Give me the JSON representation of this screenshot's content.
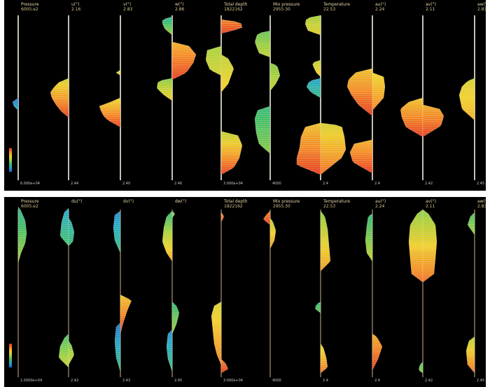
{
  "colormap": [
    "#1f5fd6",
    "#1ea9c9",
    "#3cc06b",
    "#a8d23a",
    "#f0cf2a",
    "#f48a24",
    "#e8331f"
  ],
  "top_panel": {
    "columns": [
      {
        "label": "Pressure",
        "value": "6005.e2",
        "foot": "6.000e+04"
      },
      {
        "label": "u(°)",
        "value": "2.16",
        "foot": "2.44"
      },
      {
        "label": "v(°)",
        "value": "2.83",
        "foot": "2.40"
      },
      {
        "label": "w(°)",
        "value": "2.86",
        "foot": "2.46"
      },
      {
        "label": "Total depth",
        "value": "1822162",
        "foot": "3.000e+04"
      },
      {
        "label": "Mix pressure",
        "value": "2955.30",
        "foot": "4000"
      },
      {
        "label": "Temperature",
        "value": "22.53",
        "foot": "2.4"
      },
      {
        "label": "au(°)",
        "value": "2.24",
        "foot": "2.4"
      },
      {
        "label": "av(°)",
        "value": "2.11",
        "foot": "2.42"
      },
      {
        "label": "aw(°)",
        "value": "2.83",
        "foot": "2.45"
      }
    ]
  },
  "bottom_panel": {
    "columns": [
      {
        "label": "Pressure",
        "value": "6005.e2",
        "foot": "1.0000e+04"
      },
      {
        "label": "du(°)",
        "value": "",
        "foot": "2.42"
      },
      {
        "label": "dv(°)",
        "value": "",
        "foot": "2.43"
      },
      {
        "label": "dw(°)",
        "value": "",
        "foot": "2.45"
      },
      {
        "label": "Total depth",
        "value": "1822162",
        "foot": "3.000e+04"
      },
      {
        "label": "Mix pressure",
        "value": "2955.30",
        "foot": "4000"
      },
      {
        "label": "Temperature",
        "value": "22.53",
        "foot": "2.4"
      },
      {
        "label": "au(°)",
        "value": "2.24",
        "foot": "2.4"
      },
      {
        "label": "av(°)",
        "value": "2.11",
        "foot": "2.42"
      },
      {
        "label": "aw(°)",
        "value": "2.83",
        "foot": "2.45"
      }
    ]
  }
}
